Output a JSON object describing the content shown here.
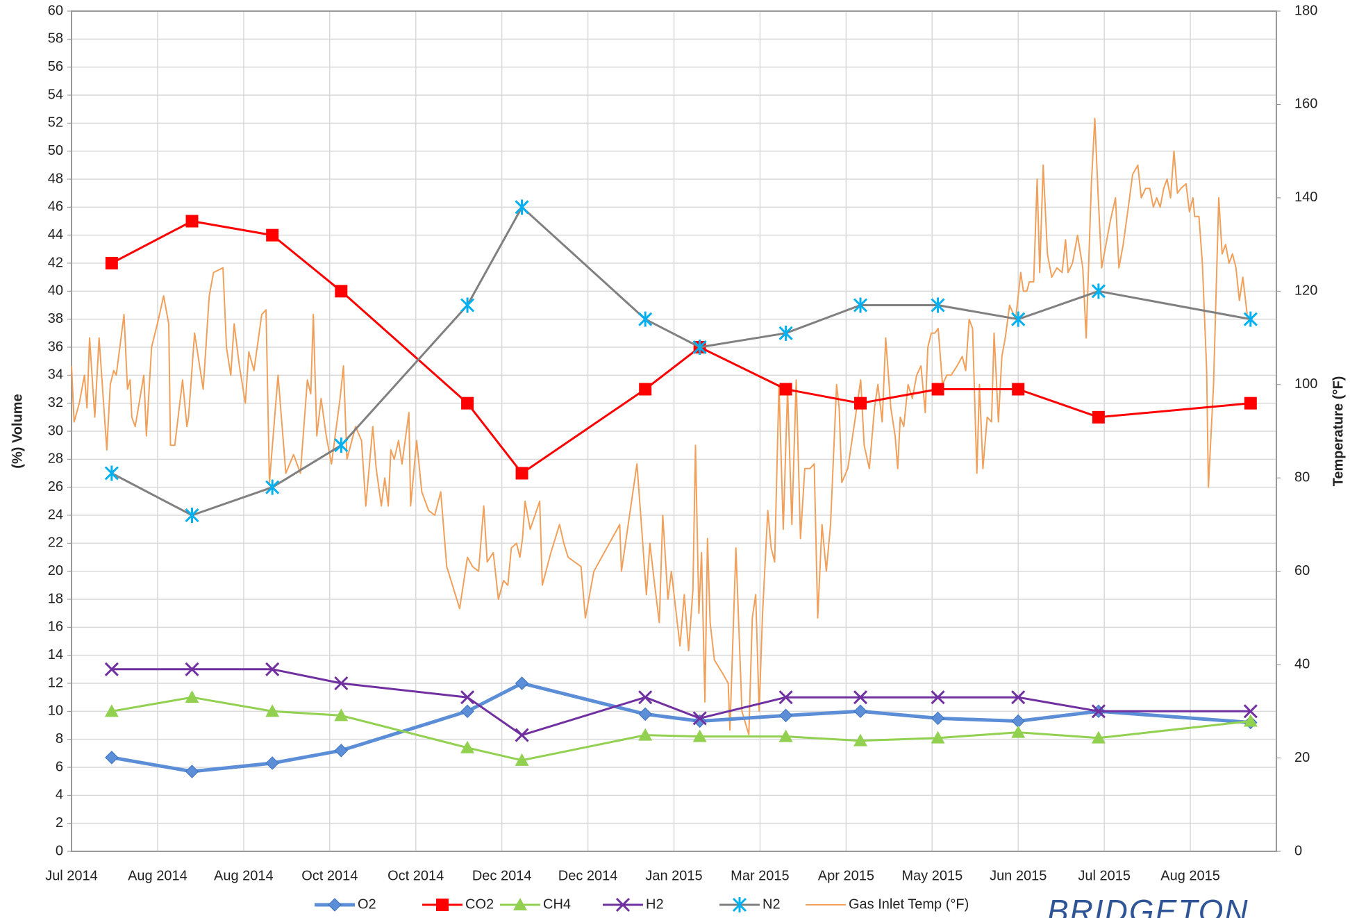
{
  "chart_data": {
    "type": "line",
    "y_label": "(%) Volume",
    "y2_label": "Temperature (°F)",
    "logo_text": "BRIDGETON",
    "grid": true,
    "legend": "bottom",
    "xlim": [
      0,
      420
    ],
    "xticks": [
      {
        "value": 0,
        "label": "Jul 2014"
      },
      {
        "value": 30,
        "label": "Aug 2014"
      },
      {
        "value": 60,
        "label": "Aug 2014"
      },
      {
        "value": 90,
        "label": "Oct 2014"
      },
      {
        "value": 120,
        "label": "Oct 2014"
      },
      {
        "value": 150,
        "label": "Dec 2014"
      },
      {
        "value": 180,
        "label": "Dec 2014"
      },
      {
        "value": 210,
        "label": "Jan 2015"
      },
      {
        "value": 240,
        "label": "Mar 2015"
      },
      {
        "value": 270,
        "label": "Apr 2015"
      },
      {
        "value": 300,
        "label": "May 2015"
      },
      {
        "value": 330,
        "label": "Jun 2015"
      },
      {
        "value": 360,
        "label": "Jul 2015"
      },
      {
        "value": 390,
        "label": "Aug 2015"
      }
    ],
    "ylim": [
      0,
      60
    ],
    "yticks": [
      0,
      2,
      4,
      6,
      8,
      10,
      12,
      14,
      16,
      18,
      20,
      22,
      24,
      26,
      28,
      30,
      32,
      34,
      36,
      38,
      40,
      42,
      44,
      46,
      48,
      50,
      52,
      54,
      56,
      58,
      60
    ],
    "y2lim": [
      0,
      180
    ],
    "y2ticks": [
      0,
      20,
      40,
      60,
      80,
      100,
      120,
      140,
      160,
      180
    ],
    "x": [
      14,
      42,
      70,
      94,
      138,
      157,
      200,
      219,
      249,
      275,
      302,
      330,
      358,
      411
    ],
    "series": [
      {
        "name": "O2",
        "color": "#5b8ed6",
        "marker": "diamond",
        "marker_color": "#5b8ed6",
        "width": 5,
        "values": [
          6.7,
          5.7,
          6.3,
          7.2,
          10,
          12,
          9.8,
          9.3,
          9.7,
          10,
          9.5,
          9.3,
          10,
          9.2
        ]
      },
      {
        "name": "CO2",
        "color": "#ff0000",
        "marker": "square",
        "marker_color": "#ff0000",
        "width": 3,
        "values": [
          42,
          45,
          44,
          40,
          32,
          27,
          33,
          36,
          33,
          32,
          33,
          33,
          31,
          32
        ]
      },
      {
        "name": "CH4",
        "color": "#92d050",
        "marker": "triangle",
        "marker_color": "#92d050",
        "width": 3,
        "values": [
          10,
          11,
          10,
          9.7,
          7.4,
          6.5,
          8.3,
          8.2,
          8.2,
          7.9,
          8.1,
          8.5,
          8.1,
          9.3
        ]
      },
      {
        "name": "H2",
        "color": "#7030a0",
        "marker": "x",
        "marker_color": "#7030a0",
        "width": 3,
        "values": [
          13,
          13,
          13,
          12,
          11,
          8.3,
          11,
          9.5,
          11,
          11,
          11,
          11,
          10,
          10
        ]
      },
      {
        "name": "N2",
        "color": "#808080",
        "marker": "asterisk",
        "marker_color": "#00b0f0",
        "width": 3,
        "values": [
          27,
          24,
          26,
          29,
          39,
          46,
          38,
          36,
          37,
          39,
          39,
          38,
          40,
          38
        ]
      },
      {
        "name": "Gas Inlet Temp (°F)",
        "color": "#f0a05a",
        "marker": "none",
        "width": 2,
        "axis": "y2",
        "x": [
          0,
          0.9,
          2.7,
          4.5,
          5.4,
          6.3,
          8.1,
          9.6,
          12.3,
          13.5,
          14.7,
          15.6,
          18.3,
          19.5,
          20.4,
          21,
          22.2,
          25.2,
          26.1,
          27.9,
          30.3,
          32.1,
          33.9,
          34.5,
          36,
          38.7,
          40.2,
          40.8,
          42.9,
          45.9,
          48,
          49.5,
          52.8,
          54,
          55.5,
          56.7,
          58.5,
          60.6,
          61.8,
          63.6,
          66.3,
          67.8,
          69,
          72,
          74.7,
          77.4,
          79.8,
          82.2,
          83.4,
          84.3,
          85.5,
          87,
          88.8,
          90.6,
          93.6,
          94.8,
          96,
          99,
          101.1,
          102.6,
          105,
          106.2,
          108,
          109.2,
          110.4,
          111.3,
          112.5,
          114,
          115.2,
          117.6,
          118.2,
          120.3,
          122.1,
          124.5,
          126.6,
          128.7,
          130.8,
          135.3,
          138,
          139.8,
          141.9,
          143.7,
          144.9,
          147,
          148.8,
          150.6,
          152.1,
          153.3,
          155.1,
          156.3,
          157.2,
          158.1,
          159.9,
          163.2,
          164.1,
          167.1,
          170.1,
          171.6,
          173.1,
          177.6,
          179.1,
          182.1,
          191.1,
          191.7,
          197.1,
          198.9,
          200.4,
          201.6,
          203.1,
          204.9,
          206.1,
          207.9,
          209.1,
          212.1,
          213.6,
          215.1,
          216.6,
          217.5,
          218.7,
          219.6,
          220.8,
          221.7,
          222.6,
          224.1,
          227.1,
          228.9,
          229.5,
          231.6,
          233.7,
          236.1,
          237.3,
          238.5,
          239.7,
          240.9,
          242.7,
          243.9,
          245.1,
          246.6,
          248.1,
          249.6,
          251.1,
          252.6,
          254.1,
          255.6,
          257.4,
          258.9,
          260.1,
          261.6,
          263.1,
          264.6,
          266.7,
          267.6,
          268.5,
          270.6,
          273,
          275.1,
          276.3,
          278.1,
          279.9,
          281.1,
          282.6,
          283.8,
          285.6,
          287.1,
          288,
          288.9,
          290.1,
          291.6,
          293.1,
          294.6,
          296.1,
          297.6,
          298.5,
          299.7,
          300.9,
          302.1,
          303.6,
          305.1,
          306.6,
          308.7,
          310.5,
          311.7,
          312.9,
          314.1,
          315.6,
          316.5,
          317.7,
          319.2,
          320.7,
          321.6,
          323.1,
          324.3,
          325.5,
          327,
          329.1,
          330.9,
          331.8,
          333,
          333.9,
          335.4,
          336.6,
          337.5,
          338.7,
          340.2,
          341.7,
          343.5,
          345.3,
          346.5,
          347.4,
          348.9,
          350.7,
          352.5,
          353.7,
          355.5,
          356.7,
          357.9,
          359.1,
          360.6,
          362.1,
          363.9,
          365.1,
          366.6,
          368.4,
          369.9,
          371.7,
          372.9,
          374.4,
          375.9,
          377.1,
          378.3,
          379.5,
          380.7,
          381.9,
          383.1,
          384.3,
          385.5,
          386.7,
          388.5,
          389.7,
          390.9,
          391.5,
          393,
          394.2,
          395.7,
          396.3,
          398.1,
          399.9,
          401.1,
          402.3,
          403.5,
          404.7,
          405.9,
          407.1,
          408.3,
          409.8
        ],
        "values": [
          104,
          92,
          96,
          102,
          95,
          110,
          93,
          110,
          86,
          100,
          103,
          102,
          115,
          99,
          101,
          93,
          91,
          102,
          89,
          108,
          114,
          119,
          113,
          87,
          87,
          101,
          91,
          93,
          111,
          99,
          119,
          124,
          125,
          108,
          102,
          113,
          104,
          96,
          107,
          103,
          115,
          116,
          79,
          102,
          81,
          85,
          81,
          101,
          98,
          115,
          89,
          97,
          89,
          83,
          97,
          104,
          84,
          91,
          88,
          74,
          91,
          82,
          74,
          80,
          74,
          86,
          84,
          88,
          83,
          94,
          74,
          88,
          77,
          73,
          72,
          77,
          61,
          52,
          63,
          61,
          60,
          74,
          62,
          64,
          54,
          58,
          57,
          65,
          66,
          63,
          67,
          75,
          69,
          75,
          57,
          64,
          70,
          66,
          63,
          61,
          50,
          60,
          70,
          60,
          83,
          68,
          55,
          66,
          58,
          49,
          72,
          54,
          60,
          44,
          55,
          43,
          56,
          87,
          51,
          64,
          32,
          67,
          49,
          41,
          38,
          36,
          26,
          65,
          30,
          25,
          50,
          55,
          30,
          51,
          73,
          65,
          62,
          100,
          69,
          99,
          70,
          101,
          67,
          82,
          82,
          83,
          50,
          70,
          60,
          70,
          100,
          95,
          79,
          82,
          92,
          101,
          87,
          82,
          95,
          100,
          92,
          110,
          95,
          89,
          82,
          93,
          91,
          100,
          97,
          102,
          104,
          94,
          108,
          111,
          111,
          112,
          100,
          102,
          102,
          104,
          106,
          103,
          114,
          112,
          81,
          100,
          82,
          93,
          92,
          111,
          92,
          106,
          110,
          117,
          114,
          124,
          120,
          120,
          122,
          122,
          144,
          124,
          147,
          128,
          123,
          125,
          124,
          131,
          124,
          126,
          132,
          125,
          110,
          143,
          157,
          140,
          125,
          130,
          135,
          140,
          125,
          130,
          138,
          145,
          147,
          140,
          142,
          142,
          138,
          140,
          138,
          142,
          144,
          140,
          150,
          141,
          142,
          143,
          137,
          140,
          136,
          136,
          126,
          103,
          78,
          100,
          140,
          128,
          130,
          126,
          128,
          125,
          118,
          123,
          115
        ]
      }
    ]
  }
}
